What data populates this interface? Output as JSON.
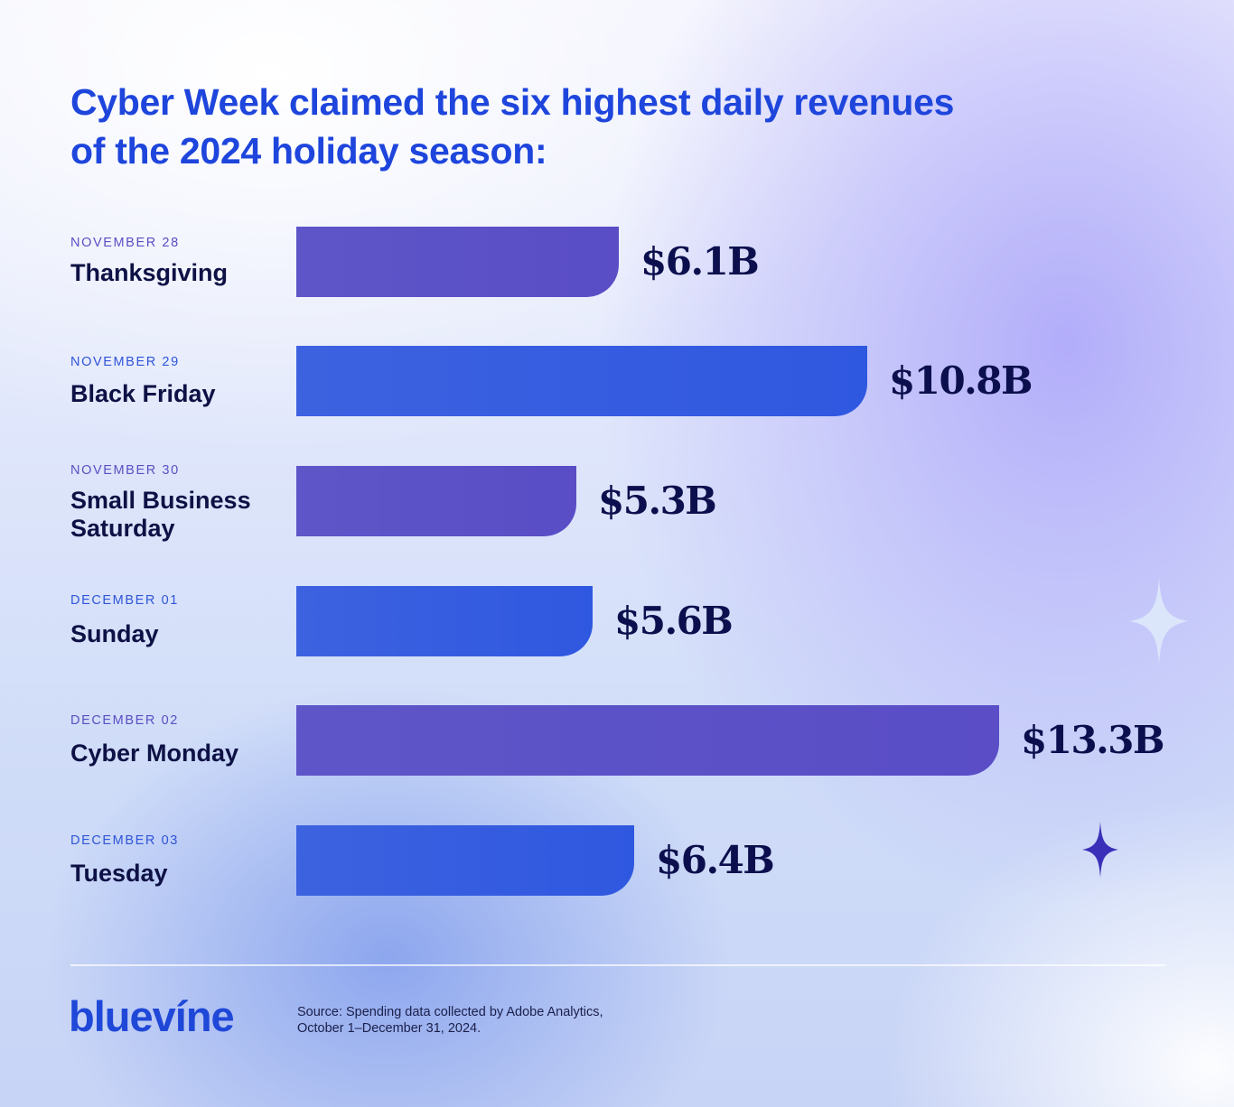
{
  "title": {
    "line1": "Cyber Week claimed the six highest daily revenues",
    "line2": "of the 2024 holiday season:"
  },
  "rows": [
    {
      "date": "NOVEMBER 28",
      "name": "Thanksgiving",
      "value_label": "$6.1B",
      "color": "purple"
    },
    {
      "date": "NOVEMBER 29",
      "name": "Black Friday",
      "value_label": "$10.8B",
      "color": "blue"
    },
    {
      "date": "NOVEMBER 30",
      "name": "Small Business Saturday",
      "value_label": "$5.3B",
      "color": "purple"
    },
    {
      "date": "DECEMBER 01",
      "name": "Sunday",
      "value_label": "$5.6B",
      "color": "blue"
    },
    {
      "date": "DECEMBER 02",
      "name": "Cyber Monday",
      "value_label": "$13.3B",
      "color": "purple"
    },
    {
      "date": "DECEMBER 03",
      "name": "Tuesday",
      "value_label": "$6.4B",
      "color": "blue"
    }
  ],
  "chart_data": {
    "type": "bar",
    "orientation": "horizontal",
    "title": "Cyber Week claimed the six highest daily revenues of the 2024 holiday season:",
    "categories": [
      "Thanksgiving",
      "Black Friday",
      "Small Business Saturday",
      "Sunday",
      "Cyber Monday",
      "Tuesday"
    ],
    "dates": [
      "NOVEMBER 28",
      "NOVEMBER 29",
      "NOVEMBER 30",
      "DECEMBER 01",
      "DECEMBER 02",
      "DECEMBER 03"
    ],
    "values": [
      6.1,
      10.8,
      5.3,
      5.6,
      13.3,
      6.4
    ],
    "value_labels": [
      "$6.1B",
      "$10.8B",
      "$5.3B",
      "$5.6B",
      "$13.3B",
      "$6.4B"
    ],
    "unit": "USD billions",
    "xlabel": "",
    "ylabel": "",
    "grid": false,
    "legend": null,
    "bar_colors": [
      "#5e56c8",
      "#3d62e0",
      "#5e56c8",
      "#3d62e0",
      "#5e56c8",
      "#3d62e0"
    ]
  },
  "colors": {
    "title": "#1e45dc",
    "purple_bar": "#5e56c8",
    "blue_bar": "#3d62e0",
    "value_text": "#0c0f4d",
    "day_text": "#0d1145",
    "sparkle_light": "#dce6fb",
    "sparkle_dark": "#3a2fb8"
  },
  "footer": {
    "logo": "bluevíne",
    "source_line1": "Source: Spending data collected by Adobe Analytics,",
    "source_line2": "October 1–December 31, 2024."
  }
}
